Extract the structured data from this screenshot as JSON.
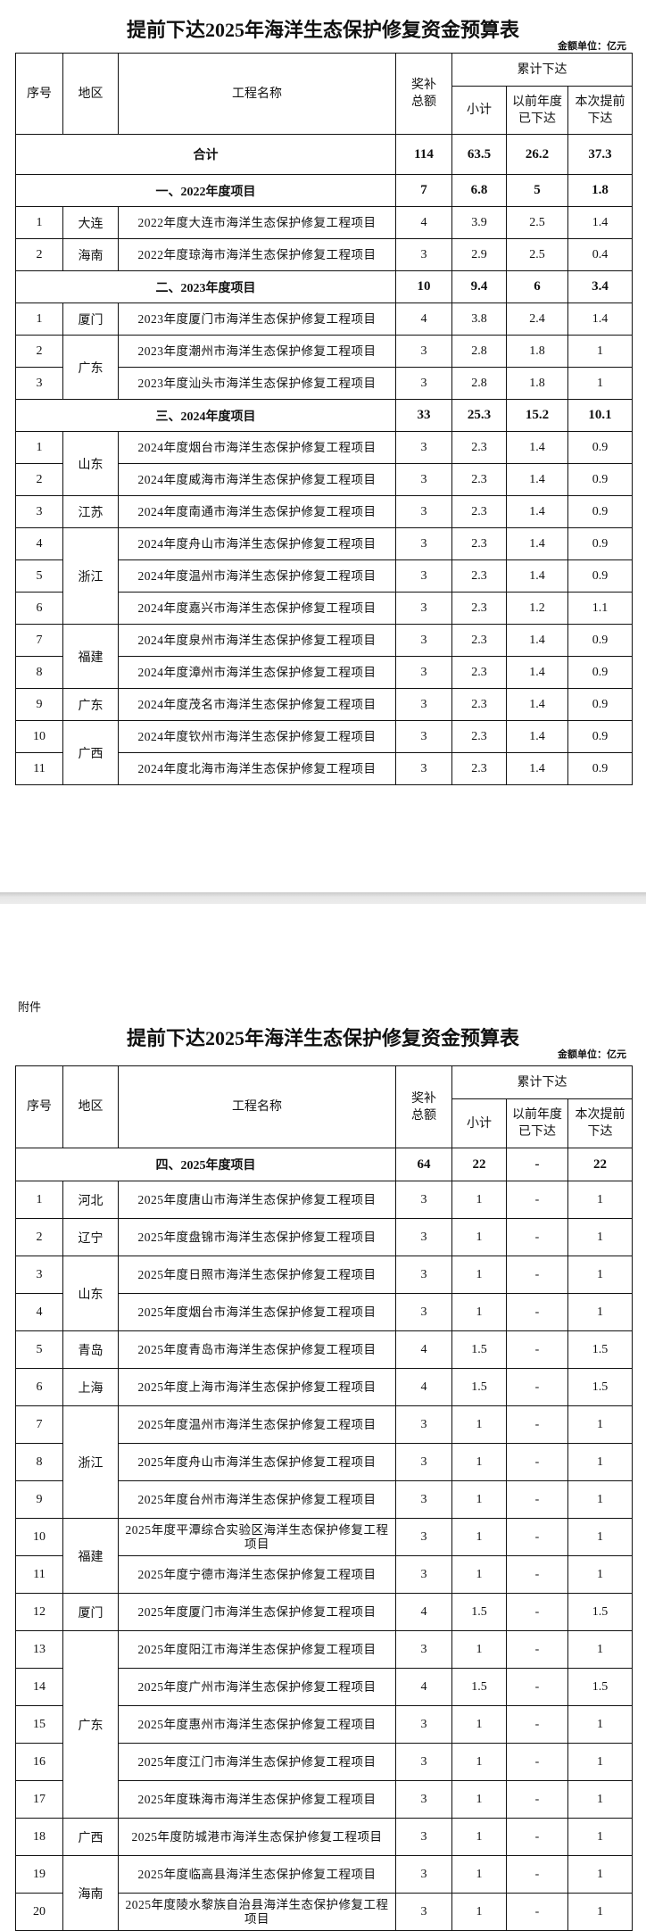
{
  "headers": {
    "no": "序号",
    "region": "地区",
    "name": "工程名称",
    "total": "奖补总额",
    "cumulative": "累计下达",
    "subtotal": "小计",
    "previous": "以前年度已下达",
    "current": "本次提前下达"
  },
  "pages": [
    {
      "title": "提前下达2025年海洋生态保护修复资金预算表",
      "unit": "金额单位：亿元",
      "total_row": {
        "label": "合计",
        "values": [
          "114",
          "63.5",
          "26.2",
          "37.3"
        ]
      },
      "sections": [
        {
          "label": "一、2022年度项目",
          "values": [
            "7",
            "6.8",
            "5",
            "1.8"
          ],
          "rows": [
            {
              "no": "1",
              "region": "大连",
              "name": "2022年度大连市海洋生态保护修复工程项目",
              "values": [
                "4",
                "3.9",
                "2.5",
                "1.4"
              ]
            },
            {
              "no": "2",
              "region": "海南",
              "name": "2022年度琼海市海洋生态保护修复工程项目",
              "values": [
                "3",
                "2.9",
                "2.5",
                "0.4"
              ]
            }
          ]
        },
        {
          "label": "二、2023年度项目",
          "values": [
            "10",
            "9.4",
            "6",
            "3.4"
          ],
          "rows": [
            {
              "no": "1",
              "region": "厦门",
              "name": "2023年度厦门市海洋生态保护修复工程项目",
              "values": [
                "4",
                "3.8",
                "2.4",
                "1.4"
              ]
            },
            {
              "no": "2",
              "region": "广东",
              "name": "2023年度潮州市海洋生态保护修复工程项目",
              "values": [
                "3",
                "2.8",
                "1.8",
                "1"
              ]
            },
            {
              "no": "3",
              "name": "2023年度汕头市海洋生态保护修复工程项目",
              "values": [
                "3",
                "2.8",
                "1.8",
                "1"
              ]
            }
          ]
        },
        {
          "label": "三、2024年度项目",
          "values": [
            "33",
            "25.3",
            "15.2",
            "10.1"
          ],
          "rows": [
            {
              "no": "1",
              "region": "山东",
              "name": "2024年度烟台市海洋生态保护修复工程项目",
              "values": [
                "3",
                "2.3",
                "1.4",
                "0.9"
              ]
            },
            {
              "no": "2",
              "name": "2024年度威海市海洋生态保护修复工程项目",
              "values": [
                "3",
                "2.3",
                "1.4",
                "0.9"
              ]
            },
            {
              "no": "3",
              "region": "江苏",
              "name": "2024年度南通市海洋生态保护修复工程项目",
              "values": [
                "3",
                "2.3",
                "1.4",
                "0.9"
              ]
            },
            {
              "no": "4",
              "region": "浙江",
              "name": "2024年度舟山市海洋生态保护修复工程项目",
              "values": [
                "3",
                "2.3",
                "1.4",
                "0.9"
              ]
            },
            {
              "no": "5",
              "name": "2024年度温州市海洋生态保护修复工程项目",
              "values": [
                "3",
                "2.3",
                "1.4",
                "0.9"
              ]
            },
            {
              "no": "6",
              "name": "2024年度嘉兴市海洋生态保护修复工程项目",
              "values": [
                "3",
                "2.3",
                "1.2",
                "1.1"
              ]
            },
            {
              "no": "7",
              "region": "福建",
              "name": "2024年度泉州市海洋生态保护修复工程项目",
              "values": [
                "3",
                "2.3",
                "1.4",
                "0.9"
              ]
            },
            {
              "no": "8",
              "name": "2024年度漳州市海洋生态保护修复工程项目",
              "values": [
                "3",
                "2.3",
                "1.4",
                "0.9"
              ]
            },
            {
              "no": "9",
              "region": "广东",
              "name": "2024年度茂名市海洋生态保护修复工程项目",
              "values": [
                "3",
                "2.3",
                "1.4",
                "0.9"
              ]
            },
            {
              "no": "10",
              "region": "广西",
              "name": "2024年度钦州市海洋生态保护修复工程项目",
              "values": [
                "3",
                "2.3",
                "1.4",
                "0.9"
              ]
            },
            {
              "no": "11",
              "name": "2024年度北海市海洋生态保护修复工程项目",
              "values": [
                "3",
                "2.3",
                "1.4",
                "0.9"
              ]
            }
          ]
        }
      ]
    },
    {
      "attachment": "附件",
      "title": "提前下达2025年海洋生态保护修复资金预算表",
      "unit": "金额单位：亿元",
      "sections": [
        {
          "label": "四、2025年度项目",
          "values": [
            "64",
            "22",
            "-",
            "22"
          ],
          "rows": [
            {
              "no": "1",
              "region": "河北",
              "name": "2025年度唐山市海洋生态保护修复工程项目",
              "values": [
                "3",
                "1",
                "-",
                "1"
              ]
            },
            {
              "no": "2",
              "region": "辽宁",
              "name": "2025年度盘锦市海洋生态保护修复工程项目",
              "values": [
                "3",
                "1",
                "-",
                "1"
              ]
            },
            {
              "no": "3",
              "region": "山东",
              "name": "2025年度日照市海洋生态保护修复工程项目",
              "values": [
                "3",
                "1",
                "-",
                "1"
              ]
            },
            {
              "no": "4",
              "name": "2025年度烟台市海洋生态保护修复工程项目",
              "values": [
                "3",
                "1",
                "-",
                "1"
              ]
            },
            {
              "no": "5",
              "region": "青岛",
              "name": "2025年度青岛市海洋生态保护修复工程项目",
              "values": [
                "4",
                "1.5",
                "-",
                "1.5"
              ]
            },
            {
              "no": "6",
              "region": "上海",
              "name": "2025年度上海市海洋生态保护修复工程项目",
              "values": [
                "4",
                "1.5",
                "-",
                "1.5"
              ]
            },
            {
              "no": "7",
              "region": "浙江",
              "name": "2025年度温州市海洋生态保护修复工程项目",
              "values": [
                "3",
                "1",
                "-",
                "1"
              ]
            },
            {
              "no": "8",
              "name": "2025年度舟山市海洋生态保护修复工程项目",
              "values": [
                "3",
                "1",
                "-",
                "1"
              ]
            },
            {
              "no": "9",
              "name": "2025年度台州市海洋生态保护修复工程项目",
              "values": [
                "3",
                "1",
                "-",
                "1"
              ]
            },
            {
              "no": "10",
              "region": "福建",
              "name": "2025年度平潭综合实验区海洋生态保护修复工程项目",
              "values": [
                "3",
                "1",
                "-",
                "1"
              ]
            },
            {
              "no": "11",
              "name": "2025年度宁德市海洋生态保护修复工程项目",
              "values": [
                "3",
                "1",
                "-",
                "1"
              ]
            },
            {
              "no": "12",
              "region": "厦门",
              "name": "2025年度厦门市海洋生态保护修复工程项目",
              "values": [
                "4",
                "1.5",
                "-",
                "1.5"
              ]
            },
            {
              "no": "13",
              "region": "广东",
              "name": "2025年度阳江市海洋生态保护修复工程项目",
              "values": [
                "3",
                "1",
                "-",
                "1"
              ]
            },
            {
              "no": "14",
              "name": "2025年度广州市海洋生态保护修复工程项目",
              "values": [
                "4",
                "1.5",
                "-",
                "1.5"
              ]
            },
            {
              "no": "15",
              "name": "2025年度惠州市海洋生态保护修复工程项目",
              "values": [
                "3",
                "1",
                "-",
                "1"
              ]
            },
            {
              "no": "16",
              "name": "2025年度江门市海洋生态保护修复工程项目",
              "values": [
                "3",
                "1",
                "-",
                "1"
              ]
            },
            {
              "no": "17",
              "name": "2025年度珠海市海洋生态保护修复工程项目",
              "values": [
                "3",
                "1",
                "-",
                "1"
              ]
            },
            {
              "no": "18",
              "region": "广西",
              "name": "2025年度防城港市海洋生态保护修复工程项目",
              "values": [
                "3",
                "1",
                "-",
                "1"
              ]
            },
            {
              "no": "19",
              "region": "海南",
              "name": "2025年度临高县海洋生态保护修复工程项目",
              "values": [
                "3",
                "1",
                "-",
                "1"
              ]
            },
            {
              "no": "20",
              "name": "2025年度陵水黎族自治县海洋生态保护修复工程项目",
              "values": [
                "3",
                "1",
                "-",
                "1"
              ]
            }
          ]
        }
      ]
    }
  ]
}
